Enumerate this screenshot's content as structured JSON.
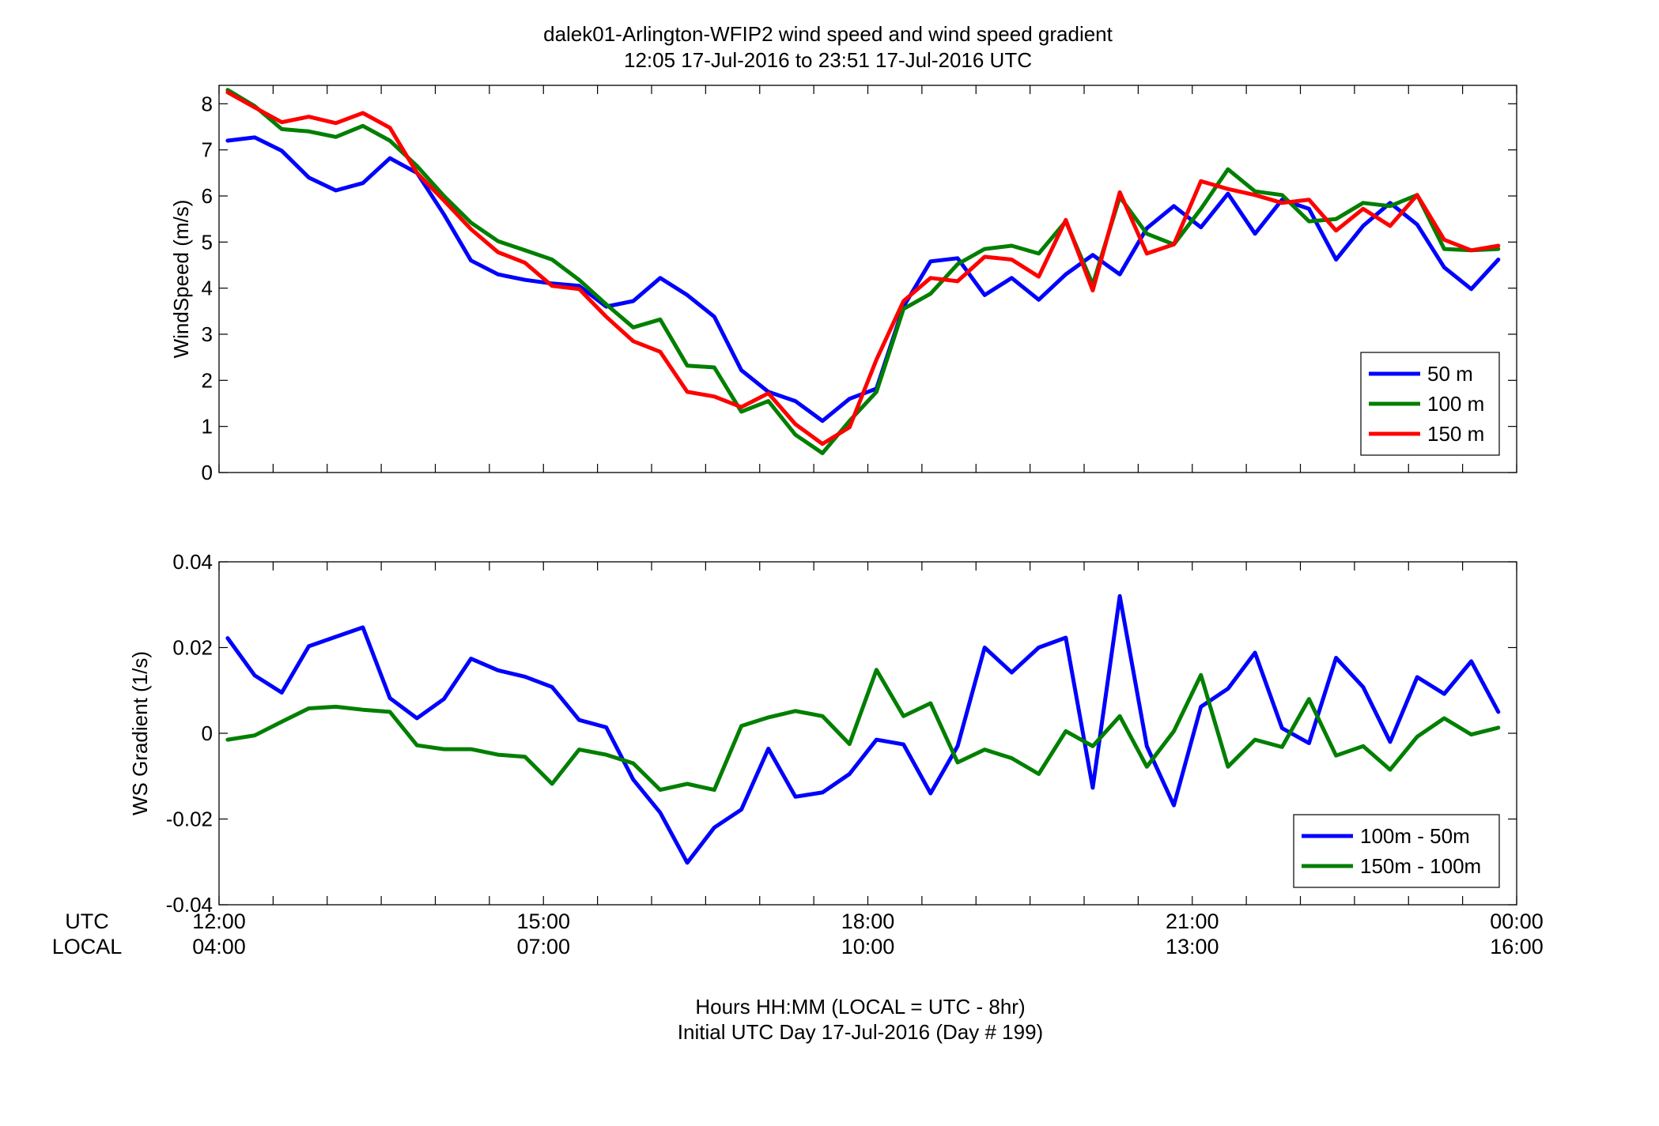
{
  "figure": {
    "title_line1": "dalek01-Arlington-WFIP2  wind speed and wind speed gradient",
    "title_line2": "12:05 17-Jul-2016 to 23:51 17-Jul-2016  UTC",
    "xlabel_line1": "Hours HH:MM  (LOCAL = UTC - 8hr)",
    "xlabel_line2": "Initial UTC Day 17-Jul-2016 (Day # 199)",
    "utc_row_label": "UTC",
    "local_row_label": "LOCAL",
    "utc_ticks": [
      "12:00",
      "15:00",
      "18:00",
      "21:00",
      "00:00"
    ],
    "local_ticks": [
      "04:00",
      "07:00",
      "10:00",
      "13:00",
      "16:00"
    ],
    "background": "#ffffff"
  },
  "chart_data": [
    {
      "type": "line",
      "ylabel": "WindSpeed (m/s)",
      "xlim": [
        12.0,
        24.0
      ],
      "ylim": [
        0,
        8.4
      ],
      "yticks": [
        0,
        1,
        2,
        3,
        4,
        5,
        6,
        7,
        8
      ],
      "legend_position": "bottom-right",
      "x": [
        12.08,
        12.33,
        12.58,
        12.83,
        13.08,
        13.33,
        13.58,
        13.83,
        14.08,
        14.33,
        14.58,
        14.83,
        15.08,
        15.33,
        15.58,
        15.83,
        16.08,
        16.33,
        16.58,
        16.83,
        17.08,
        17.33,
        17.58,
        17.83,
        18.08,
        18.33,
        18.58,
        18.83,
        19.08,
        19.33,
        19.58,
        19.83,
        20.08,
        20.33,
        20.58,
        20.83,
        21.08,
        21.33,
        21.58,
        21.83,
        22.08,
        22.33,
        22.58,
        22.83,
        23.08,
        23.33,
        23.58,
        23.83
      ],
      "series": [
        {
          "name": "50 m",
          "color": "#0000ff",
          "values": [
            7.2,
            7.27,
            6.98,
            6.4,
            6.12,
            6.28,
            6.82,
            6.5,
            5.6,
            4.6,
            4.3,
            4.18,
            4.1,
            4.05,
            3.6,
            3.72,
            4.22,
            3.85,
            3.38,
            2.22,
            1.75,
            1.55,
            1.12,
            1.6,
            1.82,
            3.6,
            4.58,
            4.65,
            3.85,
            4.22,
            3.75,
            4.3,
            4.72,
            4.3,
            5.3,
            5.78,
            5.32,
            6.05,
            5.18,
            5.92,
            5.72,
            4.62,
            5.35,
            5.85,
            5.38,
            4.45,
            3.98,
            4.62
          ]
        },
        {
          "name": "100 m",
          "color": "#007f00",
          "values": [
            8.3,
            7.95,
            7.45,
            7.4,
            7.28,
            7.52,
            7.2,
            6.65,
            6.0,
            5.42,
            5.02,
            4.82,
            4.62,
            4.18,
            3.65,
            3.15,
            3.32,
            2.32,
            2.28,
            1.32,
            1.55,
            0.82,
            0.42,
            1.12,
            1.75,
            3.55,
            3.88,
            4.52,
            4.85,
            4.92,
            4.75,
            5.45,
            4.08,
            5.98,
            5.18,
            4.95,
            5.72,
            6.58,
            6.1,
            6.02,
            5.45,
            5.5,
            5.85,
            5.78,
            6.02,
            4.85,
            4.82,
            4.85
          ]
        },
        {
          "name": "150 m",
          "color": "#ff0000",
          "values": [
            8.25,
            7.92,
            7.6,
            7.72,
            7.58,
            7.8,
            7.48,
            6.5,
            5.9,
            5.28,
            4.78,
            4.55,
            4.05,
            3.98,
            3.38,
            2.85,
            2.62,
            1.75,
            1.65,
            1.42,
            1.72,
            1.05,
            0.62,
            0.98,
            2.45,
            3.72,
            4.22,
            4.15,
            4.68,
            4.62,
            4.25,
            5.48,
            3.95,
            6.08,
            4.75,
            4.95,
            6.32,
            6.15,
            6.02,
            5.85,
            5.92,
            5.25,
            5.72,
            5.35,
            6.02,
            5.05,
            4.82,
            4.92
          ]
        }
      ]
    },
    {
      "type": "line",
      "ylabel": "WS Gradient (1/s)",
      "xlim": [
        12.0,
        24.0
      ],
      "ylim": [
        -0.04,
        0.04
      ],
      "yticks": [
        -0.04,
        -0.02,
        0,
        0.02,
        0.04
      ],
      "ytick_labels": [
        "-0.04",
        "-0.02",
        "0",
        "0.02",
        "0.04"
      ],
      "legend_position": "bottom-right",
      "x": [
        12.08,
        12.33,
        12.58,
        12.83,
        13.08,
        13.33,
        13.58,
        13.83,
        14.08,
        14.33,
        14.58,
        14.83,
        15.08,
        15.33,
        15.58,
        15.83,
        16.08,
        16.33,
        16.58,
        16.83,
        17.08,
        17.33,
        17.58,
        17.83,
        18.08,
        18.33,
        18.58,
        18.83,
        19.08,
        19.33,
        19.58,
        19.83,
        20.08,
        20.33,
        20.58,
        20.83,
        21.08,
        21.33,
        21.58,
        21.83,
        22.08,
        22.33,
        22.58,
        22.83,
        23.08,
        23.33,
        23.58,
        23.83
      ],
      "series": [
        {
          "name": "100m - 50m",
          "color": "#0000ff",
          "values": [
            0.0222,
            0.0135,
            0.0095,
            0.0203,
            0.0225,
            0.0247,
            0.0082,
            0.0035,
            0.008,
            0.0174,
            0.0147,
            0.0132,
            0.0108,
            0.0031,
            0.0014,
            -0.0108,
            -0.0185,
            -0.0302,
            -0.022,
            -0.0178,
            -0.0036,
            -0.0148,
            -0.0138,
            -0.0095,
            -0.0015,
            -0.0026,
            -0.014,
            -0.003,
            0.02,
            0.0142,
            0.02,
            0.0223,
            -0.0127,
            0.032,
            -0.003,
            -0.0168,
            0.0062,
            0.0104,
            0.0188,
            0.0012,
            -0.0023,
            0.0176,
            0.0108,
            -0.002,
            0.0131,
            0.0092,
            0.0168,
            0.005
          ]
        },
        {
          "name": "150m - 100m",
          "color": "#007f00",
          "values": [
            -0.0015,
            -0.0005,
            0.0027,
            0.0058,
            0.0062,
            0.0055,
            0.005,
            -0.0028,
            -0.0037,
            -0.0037,
            -0.005,
            -0.0055,
            -0.0118,
            -0.0038,
            -0.005,
            -0.007,
            -0.0132,
            -0.0118,
            -0.0132,
            0.0017,
            0.0037,
            0.0052,
            0.004,
            -0.0025,
            0.0148,
            0.004,
            0.007,
            -0.0068,
            -0.0038,
            -0.0058,
            -0.0095,
            0.0005,
            -0.003,
            0.004,
            -0.0078,
            0.0005,
            0.0136,
            -0.0078,
            -0.0015,
            -0.0032,
            0.008,
            -0.0052,
            -0.003,
            -0.0085,
            -0.0008,
            0.0035,
            -0.0003,
            0.0013
          ]
        }
      ]
    }
  ]
}
